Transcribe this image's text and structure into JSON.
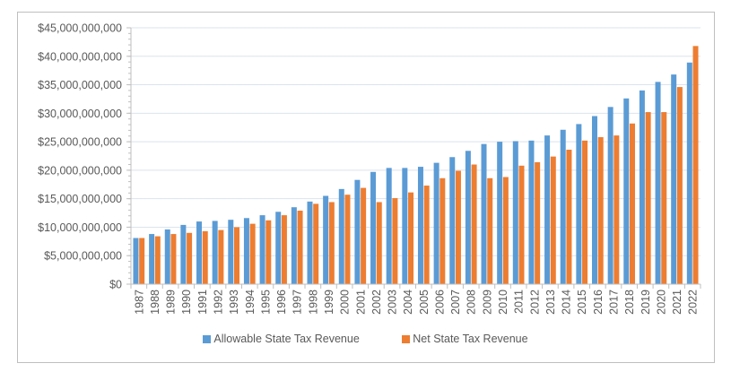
{
  "chart_data": {
    "type": "bar",
    "title": "",
    "xlabel": "",
    "ylabel": "",
    "ylim": [
      0,
      45000000000
    ],
    "y_ticks": [
      0,
      5000000000,
      10000000000,
      15000000000,
      20000000000,
      25000000000,
      30000000000,
      35000000000,
      40000000000,
      45000000000
    ],
    "y_tick_labels": [
      "$0",
      "$5,000,000,000",
      "$10,000,000,000",
      "$15,000,000,000",
      "$20,000,000,000",
      "$25,000,000,000",
      "$30,000,000,000",
      "$35,000,000,000",
      "$40,000,000,000",
      "$45,000,000,000"
    ],
    "grid": true,
    "legend_position": "bottom",
    "categories": [
      "1987",
      "1988",
      "1989",
      "1990",
      "1991",
      "1992",
      "1993",
      "1994",
      "1995",
      "1996",
      "1997",
      "1998",
      "1999",
      "2000",
      "2001",
      "2002",
      "2003",
      "2004",
      "2005",
      "2006",
      "2007",
      "2008",
      "2009",
      "2010",
      "2011",
      "2012",
      "2013",
      "2014",
      "2015",
      "2016",
      "2017",
      "2018",
      "2019",
      "2020",
      "2021",
      "2022"
    ],
    "series": [
      {
        "name": "Allowable State Tax Revenue",
        "color": "#5b9bd5",
        "values": [
          8100000000,
          8800000000,
          9600000000,
          10400000000,
          11000000000,
          11100000000,
          11300000000,
          11600000000,
          12100000000,
          12700000000,
          13500000000,
          14500000000,
          15500000000,
          16700000000,
          18300000000,
          19700000000,
          20400000000,
          20400000000,
          20600000000,
          21300000000,
          22300000000,
          23400000000,
          24600000000,
          25000000000,
          25100000000,
          25200000000,
          26100000000,
          27100000000,
          28100000000,
          29500000000,
          31100000000,
          32600000000,
          34000000000,
          35500000000,
          36800000000,
          38900000000
        ]
      },
      {
        "name": "Net State Tax Revenue",
        "color": "#ed7d31",
        "values": [
          8100000000,
          8400000000,
          8800000000,
          9000000000,
          9300000000,
          9500000000,
          10000000000,
          10600000000,
          11200000000,
          12100000000,
          12900000000,
          14100000000,
          14400000000,
          15700000000,
          16900000000,
          14400000000,
          15100000000,
          16100000000,
          17300000000,
          18600000000,
          19900000000,
          21000000000,
          18600000000,
          18800000000,
          20800000000,
          21400000000,
          22400000000,
          23600000000,
          25200000000,
          25800000000,
          26100000000,
          28200000000,
          30200000000,
          30200000000,
          34600000000,
          41800000000
        ]
      }
    ]
  },
  "legend": {
    "items": [
      {
        "label": "Allowable State Tax Revenue",
        "color": "#5b9bd5"
      },
      {
        "label": "Net State Tax Revenue",
        "color": "#ed7d31"
      }
    ]
  }
}
